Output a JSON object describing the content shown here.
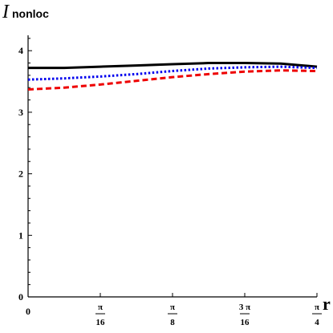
{
  "chart_data": {
    "type": "line",
    "title": "",
    "ylabel_main": "I",
    "ylabel_sub": "nonloc",
    "xlabel": "r",
    "xlim": [
      0,
      0.7854
    ],
    "ylim": [
      0,
      4.25
    ],
    "x_ticks": [
      {
        "value": 0,
        "numerator": "0",
        "denominator": ""
      },
      {
        "value": 0.19635,
        "numerator": "π",
        "denominator": "16"
      },
      {
        "value": 0.3927,
        "numerator": "π",
        "denominator": "8"
      },
      {
        "value": 0.58905,
        "numerator": "3 π",
        "denominator": "16"
      },
      {
        "value": 0.7854,
        "numerator": "π",
        "denominator": "4"
      }
    ],
    "y_ticks": [
      {
        "value": 0,
        "label": "0"
      },
      {
        "value": 1,
        "label": "1"
      },
      {
        "value": 2,
        "label": "2"
      },
      {
        "value": 3,
        "label": "3"
      },
      {
        "value": 4,
        "label": "4"
      }
    ],
    "series": [
      {
        "style": "solid",
        "color": "#000000",
        "x": [
          0,
          0.0982,
          0.19635,
          0.2945,
          0.3927,
          0.4909,
          0.58905,
          0.6872,
          0.7854
        ],
        "y": [
          3.72,
          3.72,
          3.74,
          3.76,
          3.78,
          3.8,
          3.8,
          3.79,
          3.74
        ]
      },
      {
        "style": "dotted",
        "color": "#0000ee",
        "x": [
          0,
          0.0982,
          0.19635,
          0.2945,
          0.3927,
          0.4909,
          0.58905,
          0.6872,
          0.7854
        ],
        "y": [
          3.53,
          3.55,
          3.58,
          3.62,
          3.67,
          3.71,
          3.73,
          3.74,
          3.72
        ]
      },
      {
        "style": "dashed",
        "color": "#ee0000",
        "x": [
          0,
          0.0982,
          0.19635,
          0.2945,
          0.3927,
          0.4909,
          0.58905,
          0.6872,
          0.7854
        ],
        "y": [
          3.37,
          3.4,
          3.45,
          3.51,
          3.57,
          3.62,
          3.66,
          3.68,
          3.67
        ]
      }
    ]
  }
}
